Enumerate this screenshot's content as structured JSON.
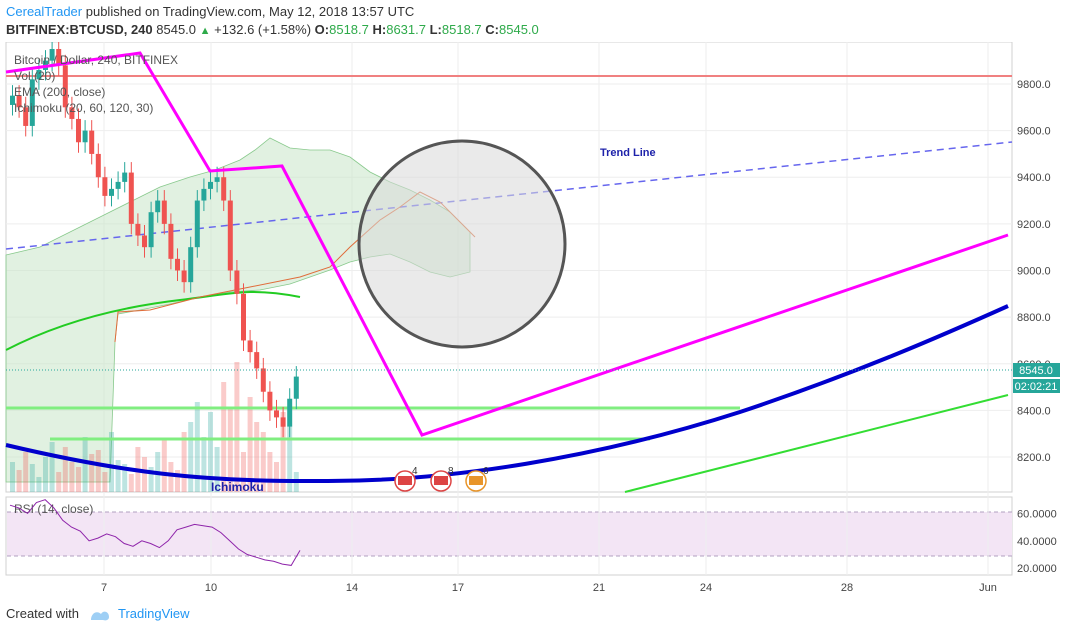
{
  "header": {
    "author": "CerealTrader",
    "published_text": "published on TradingView.com, May 12, 2018 13:57 UTC",
    "symbol": "BITFINEX:BTCUSD, 240",
    "price": "8545.0",
    "change_arrow": "▲",
    "change": "+132.6 (+1.58%)",
    "o_label": "O:",
    "o": "8518.7",
    "h_label": "H:",
    "h": "8631.7",
    "l_label": "L:",
    "l": "8518.7",
    "c_label": "C:",
    "c": "8545.0"
  },
  "legend": {
    "title": "Bitcoin / Dollar, 240, BITFINEX",
    "items": [
      "Vol (20)",
      "EMA (200, close)",
      "Ichimoku (20, 60, 120, 30)"
    ]
  },
  "rsi_label": "RSI (14, close)",
  "price_axis": {
    "ticks": [
      "9800.0",
      "9600.0",
      "9400.0",
      "9200.0",
      "9000.0",
      "8800.0",
      "8600.0",
      "8400.0",
      "8200.0"
    ],
    "current_price": "8545.0",
    "countdown": "02:02:21"
  },
  "rsi_axis": {
    "ticks": [
      "60.0000",
      "40.0000",
      "20.0000"
    ]
  },
  "time_axis": {
    "ticks": [
      "7",
      "10",
      "14",
      "17",
      "21",
      "24",
      "28",
      "Jun"
    ]
  },
  "annotations": {
    "trend_line": "Trend Line",
    "ichimoku": "Ichimoku"
  },
  "events": [
    "4",
    "8",
    "6"
  ],
  "footer": {
    "created_with": "Created with",
    "brand": "TradingView"
  },
  "colors": {
    "bull": "#26a69a",
    "bear": "#ef5350",
    "magenta": "#ff00ff",
    "blue": "#0000cc",
    "green": "#33dd33",
    "red_line": "#f08080",
    "trend_dash": "#6666ee",
    "cloud": "#c8e6c9",
    "rsi_band": "#f3e5f5",
    "label_blue": "#1e22aa"
  },
  "chart_data": {
    "type": "candlestick",
    "title": "Bitcoin / Dollar, 240, BITFINEX",
    "ylim": [
      8050,
      9980
    ],
    "xlim": [
      "2018-05-03",
      "2018-06-01"
    ],
    "price_ticks": [
      8200,
      8400,
      8600,
      8800,
      9000,
      9200,
      9400,
      9600,
      9800
    ],
    "last_price": 8545.0,
    "candles_close": [
      9750,
      9700,
      9620,
      9820,
      9860,
      9900,
      9950,
      9880,
      9700,
      9650,
      9550,
      9600,
      9500,
      9400,
      9320,
      9350,
      9380,
      9420,
      9200,
      9150,
      9100,
      9250,
      9300,
      9200,
      9050,
      9000,
      8950,
      9100,
      9300,
      9350,
      9380,
      9400,
      9300,
      9000,
      8900,
      8700,
      8650,
      8580,
      8480,
      8400,
      8370,
      8330,
      8450,
      8545
    ],
    "rsi": {
      "ylim": [
        15,
        72
      ],
      "ticks": [
        20,
        40,
        60
      ],
      "bands": [
        30,
        70
      ]
    },
    "horizontal_lines": [
      9800,
      8390,
      8260
    ],
    "trend_line": {
      "from": [
        0.0,
        9060
      ],
      "to": [
        1.0,
        9510
      ]
    }
  }
}
